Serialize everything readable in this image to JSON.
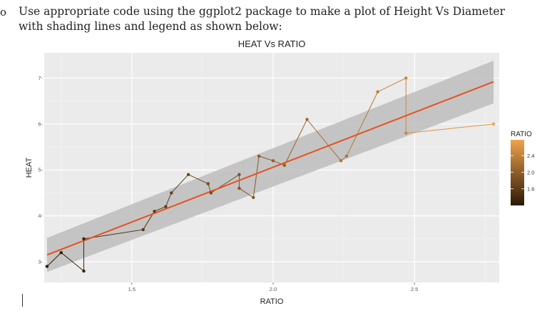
{
  "document": {
    "bullet": "o",
    "instruction": "Use appropriate code using the ggplot2 package to make a plot of Height Vs Diameter with shading lines and legend as shown below:"
  },
  "chart_data": {
    "type": "line",
    "title": "HEAT Vs RATIO",
    "xlabel": "RATIO",
    "ylabel": "HEAT",
    "xlim": [
      1.19,
      2.8
    ],
    "ylim": [
      2.55,
      7.55
    ],
    "xticks": [
      1.5,
      2.0,
      2.5
    ],
    "xtick_labels": [
      "1.5",
      "2.0",
      "2.5"
    ],
    "yticks": [
      3,
      4,
      5,
      6,
      7
    ],
    "ytick_labels": [
      "3-",
      "4-",
      "5-",
      "6-",
      "7-"
    ],
    "grid": true,
    "points": [
      {
        "x": 1.2,
        "y": 2.9
      },
      {
        "x": 1.25,
        "y": 3.2
      },
      {
        "x": 1.33,
        "y": 2.8
      },
      {
        "x": 1.33,
        "y": 3.5
      },
      {
        "x": 1.54,
        "y": 3.7
      },
      {
        "x": 1.58,
        "y": 4.1
      },
      {
        "x": 1.62,
        "y": 4.2
      },
      {
        "x": 1.64,
        "y": 4.5
      },
      {
        "x": 1.7,
        "y": 4.9
      },
      {
        "x": 1.77,
        "y": 4.7
      },
      {
        "x": 1.78,
        "y": 4.5
      },
      {
        "x": 1.88,
        "y": 4.9
      },
      {
        "x": 1.88,
        "y": 4.6
      },
      {
        "x": 1.93,
        "y": 4.4
      },
      {
        "x": 1.95,
        "y": 5.3
      },
      {
        "x": 2.0,
        "y": 5.2
      },
      {
        "x": 2.04,
        "y": 5.1
      },
      {
        "x": 2.12,
        "y": 6.1
      },
      {
        "x": 2.24,
        "y": 5.2
      },
      {
        "x": 2.26,
        "y": 5.3
      },
      {
        "x": 2.37,
        "y": 6.7
      },
      {
        "x": 2.47,
        "y": 7.0
      },
      {
        "x": 2.47,
        "y": 5.8
      },
      {
        "x": 2.78,
        "y": 6.0
      }
    ],
    "smooth": {
      "method": "lm",
      "fit_start": {
        "x": 1.2,
        "y": 3.15
      },
      "fit_end": {
        "x": 2.78,
        "y": 6.92
      },
      "band_start": [
        2.78,
        3.52
      ],
      "band_end": [
        6.45,
        7.38
      ],
      "line_color": "#e8501e",
      "band_color": "#bdbdbd"
    },
    "legend": {
      "title": "RATIO",
      "position": "right",
      "breaks": [
        2.4,
        2.0,
        1.6
      ],
      "break_labels": [
        "2.4",
        "2.0",
        "1.6"
      ],
      "range": [
        1.2,
        2.78
      ],
      "color_low": "#2a1804",
      "color_high": "#f0a24c"
    }
  }
}
